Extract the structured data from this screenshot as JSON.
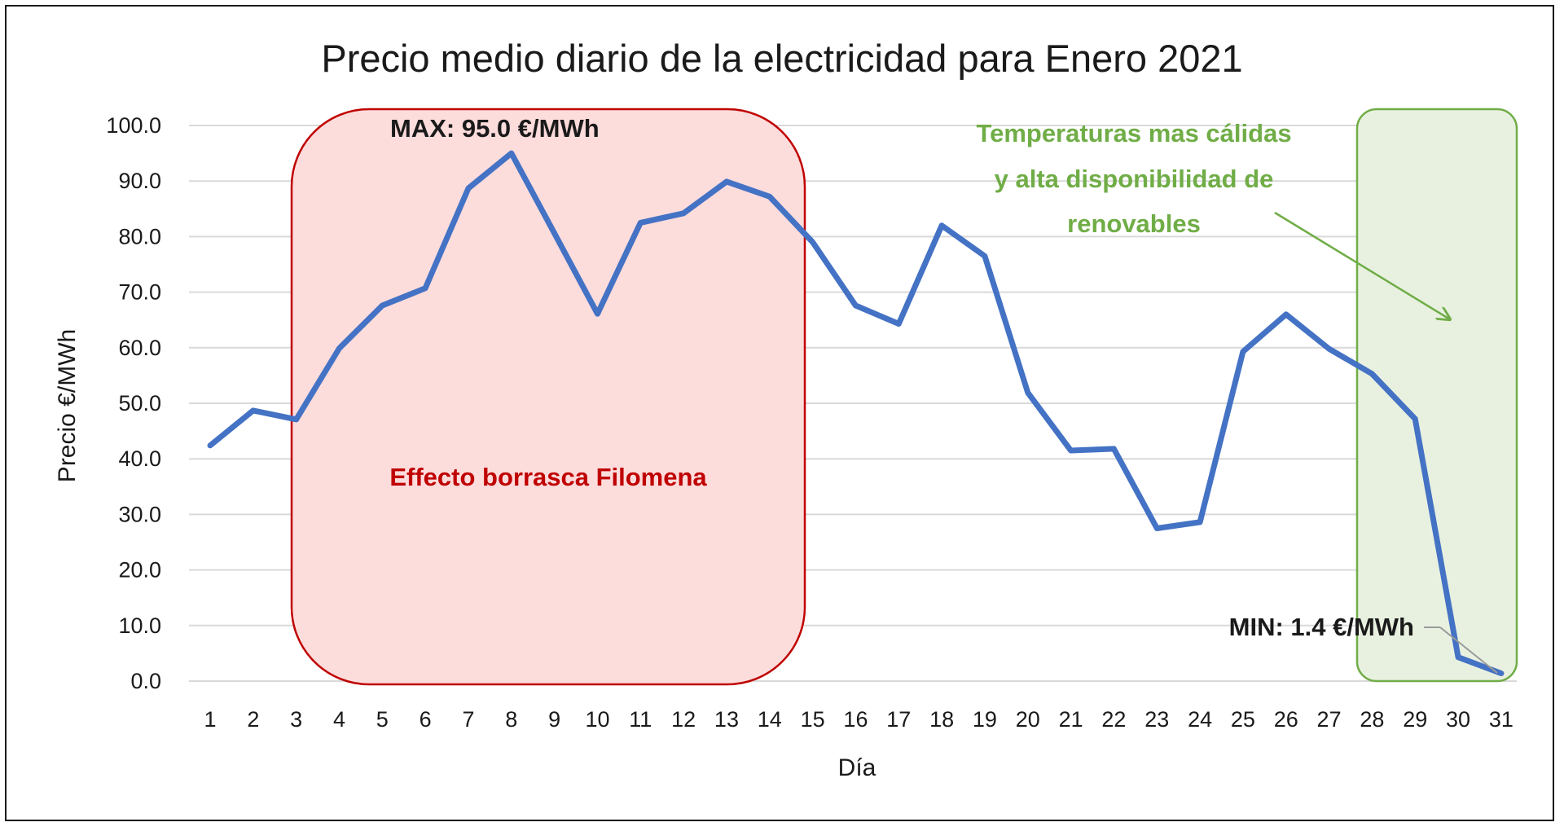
{
  "chart_data": {
    "type": "line",
    "title": "Precio medio diario de la electricidad para Enero 2021",
    "xlabel": "Día",
    "ylabel": "Precio €/MWh",
    "ylim": [
      0,
      100
    ],
    "yticks": [
      "0.0",
      "10.0",
      "20.0",
      "30.0",
      "40.0",
      "50.0",
      "60.0",
      "70.0",
      "80.0",
      "90.0",
      "100.0"
    ],
    "grid": true,
    "x": [
      1,
      2,
      3,
      4,
      5,
      6,
      7,
      8,
      9,
      10,
      11,
      12,
      13,
      14,
      15,
      16,
      17,
      18,
      19,
      20,
      21,
      22,
      23,
      24,
      25,
      26,
      27,
      28,
      29,
      30,
      31
    ],
    "series": [
      {
        "color": "#4472c4",
        "values": [
          42.4,
          48.7,
          47.1,
          59.9,
          67.6,
          70.7,
          88.7,
          95.0,
          80.6,
          66.1,
          82.5,
          84.2,
          89.9,
          87.2,
          79.0,
          67.6,
          64.3,
          82.0,
          76.5,
          51.9,
          41.5,
          41.8,
          27.5,
          28.6,
          59.3,
          66.0,
          59.8,
          55.3,
          47.2,
          4.3,
          1.4
        ]
      }
    ],
    "annotations": {
      "max_label": "MAX: 95.0 €/MWh",
      "min_label": "MIN: 1.4 €/MWh",
      "storm_label": "Effecto borrasca Filomena",
      "warm_label_lines": [
        "Temperaturas mas cálidas",
        "y alta disponibilidad de",
        "renovables"
      ]
    },
    "colors": {
      "storm_fill": "#fddcdc",
      "storm_border": "#c00000",
      "storm_text": "#c00000",
      "warm_fill": "#e8f1e0",
      "warm_border": "#70ad47",
      "warm_text": "#70ad47",
      "grid": "#d9d9d9"
    }
  }
}
